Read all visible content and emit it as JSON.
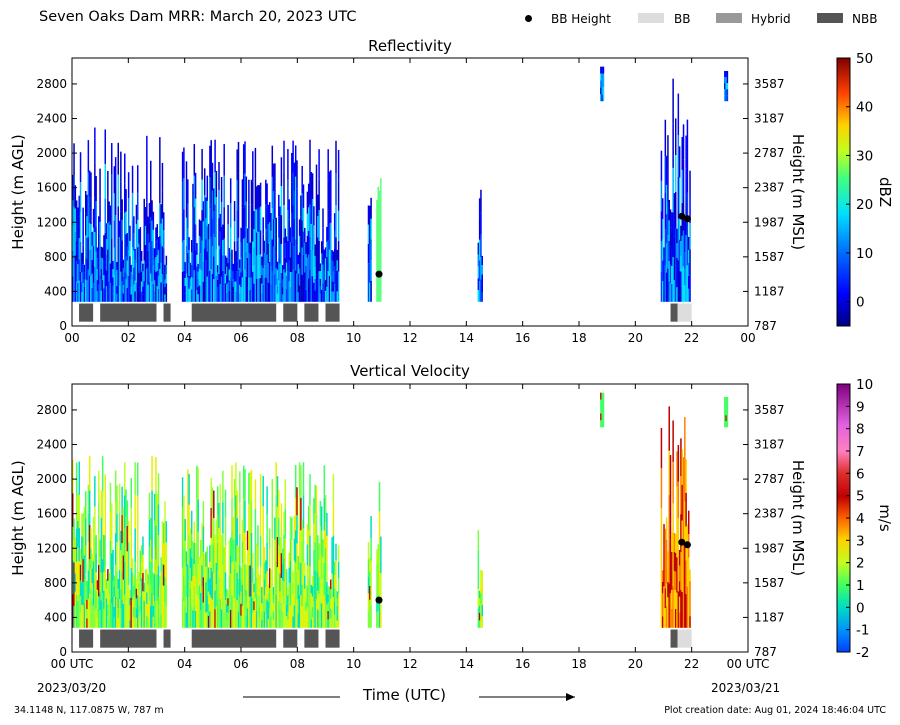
{
  "title": "Seven Oaks Dam MRR:  March 20, 2023 UTC",
  "legend": [
    {
      "label": "BB Height",
      "kind": "dot",
      "color": "#000000"
    },
    {
      "label": "BB",
      "kind": "swatch",
      "color": "#dddddd"
    },
    {
      "label": "Hybrid",
      "kind": "swatch",
      "color": "#999999"
    },
    {
      "label": "NBB",
      "kind": "swatch",
      "color": "#555555"
    }
  ],
  "footer": {
    "location": "34.1148 N, 117.0875 W, 787 m",
    "created": "Plot creation date: Aug 01, 2024 18:46:04 UTC"
  },
  "xlabel": "Time (UTC)",
  "date_start": "2023/03/20",
  "date_end": "2023/03/21",
  "chart_data": [
    {
      "type": "heatmap",
      "title": "Reflectivity",
      "ylabel": "Height (m AGL)",
      "ylabel_right": "Height (m MSL)",
      "x_ticks": [
        "00",
        "02",
        "04",
        "06",
        "08",
        "10",
        "12",
        "14",
        "16",
        "18",
        "20",
        "22",
        "00"
      ],
      "xlim": [
        0,
        24
      ],
      "y_ticks": [
        0,
        400,
        800,
        1200,
        1600,
        2000,
        2400,
        2800
      ],
      "y_ticks_right": [
        "787",
        "1187",
        "1587",
        "1987",
        "2387",
        "2787",
        "3187",
        "3587"
      ],
      "ylim": [
        0,
        3100
      ],
      "colorbar": {
        "label": "dBZ",
        "ticks": [
          "50",
          "40",
          "30",
          "20",
          "10",
          "0"
        ],
        "range": [
          -5,
          50
        ]
      },
      "precip_regions": [
        {
          "t0": 0.0,
          "t1": 3.35,
          "top_max": 2300
        },
        {
          "t0": 3.9,
          "t1": 9.45,
          "top_max": 2200
        },
        {
          "t0": 10.5,
          "t1": 10.6,
          "top_max": 1700
        },
        {
          "t0": 10.8,
          "t1": 10.95,
          "top_max": 2000
        },
        {
          "t0": 14.4,
          "t1": 14.55,
          "top_max": 1900
        },
        {
          "t0": 18.75,
          "t1": 18.85,
          "top_max": 3000,
          "bottom": 2600
        },
        {
          "t0": 20.9,
          "t1": 21.95,
          "top_max": 2900
        },
        {
          "t0": 23.15,
          "t1": 23.25,
          "top_max": 2950,
          "bottom": 2600
        }
      ],
      "bb_height": [
        {
          "t": 10.9,
          "h": 600
        },
        {
          "t": 21.65,
          "h": 1270
        },
        {
          "t": 21.85,
          "h": 1240
        }
      ],
      "bb_bars": [
        {
          "t0": 0.25,
          "t1": 0.75,
          "type": "NBB"
        },
        {
          "t0": 1.0,
          "t1": 3.0,
          "type": "NBB"
        },
        {
          "t0": 3.25,
          "t1": 3.5,
          "type": "NBB"
        },
        {
          "t0": 4.25,
          "t1": 7.25,
          "type": "NBB"
        },
        {
          "t0": 7.5,
          "t1": 8.0,
          "type": "NBB"
        },
        {
          "t0": 8.25,
          "t1": 8.75,
          "type": "NBB"
        },
        {
          "t0": 9.0,
          "t1": 9.5,
          "type": "NBB"
        },
        {
          "t0": 21.25,
          "t1": 21.5,
          "type": "NBB"
        },
        {
          "t0": 21.5,
          "t1": 22.0,
          "type": "BB"
        }
      ]
    },
    {
      "type": "heatmap",
      "title": "Vertical Velocity",
      "ylabel": "Height (m AGL)",
      "ylabel_right": "Height (m MSL)",
      "x_ticks": [
        "00 UTC",
        "02",
        "04",
        "06",
        "08",
        "10",
        "12",
        "14",
        "16",
        "18",
        "20",
        "22",
        "00 UTC"
      ],
      "xlim": [
        0,
        24
      ],
      "y_ticks": [
        0,
        400,
        800,
        1200,
        1600,
        2000,
        2400,
        2800
      ],
      "y_ticks_right": [
        "787",
        "1187",
        "1587",
        "1987",
        "2387",
        "2787",
        "3187",
        "3587"
      ],
      "ylim": [
        0,
        3100
      ],
      "colorbar": {
        "label": "m/s",
        "ticks": [
          "10",
          "9",
          "8",
          "7",
          "6",
          "5",
          "4",
          "3",
          "2",
          "1",
          "0",
          "-1",
          "-2"
        ],
        "range": [
          -2,
          10
        ]
      },
      "precip_regions": [
        {
          "t0": 0.0,
          "t1": 3.35,
          "top_max": 2300
        },
        {
          "t0": 3.9,
          "t1": 9.45,
          "top_max": 2200
        },
        {
          "t0": 10.5,
          "t1": 10.6,
          "top_max": 1700
        },
        {
          "t0": 10.8,
          "t1": 10.95,
          "top_max": 2000
        },
        {
          "t0": 14.4,
          "t1": 14.55,
          "top_max": 1900
        },
        {
          "t0": 18.75,
          "t1": 18.85,
          "top_max": 3000,
          "bottom": 2600
        },
        {
          "t0": 20.9,
          "t1": 21.95,
          "top_max": 2900
        },
        {
          "t0": 23.15,
          "t1": 23.25,
          "top_max": 2950,
          "bottom": 2600
        }
      ],
      "bb_height": [
        {
          "t": 10.9,
          "h": 600
        },
        {
          "t": 21.65,
          "h": 1270
        },
        {
          "t": 21.85,
          "h": 1240
        }
      ],
      "bb_bars": [
        {
          "t0": 0.25,
          "t1": 0.75,
          "type": "NBB"
        },
        {
          "t0": 1.0,
          "t1": 3.0,
          "type": "NBB"
        },
        {
          "t0": 3.25,
          "t1": 3.5,
          "type": "NBB"
        },
        {
          "t0": 4.25,
          "t1": 7.25,
          "type": "NBB"
        },
        {
          "t0": 7.5,
          "t1": 8.0,
          "type": "NBB"
        },
        {
          "t0": 8.25,
          "t1": 8.75,
          "type": "NBB"
        },
        {
          "t0": 9.0,
          "t1": 9.5,
          "type": "NBB"
        },
        {
          "t0": 21.25,
          "t1": 21.5,
          "type": "NBB"
        },
        {
          "t0": 21.5,
          "t1": 22.0,
          "type": "BB"
        }
      ]
    }
  ]
}
